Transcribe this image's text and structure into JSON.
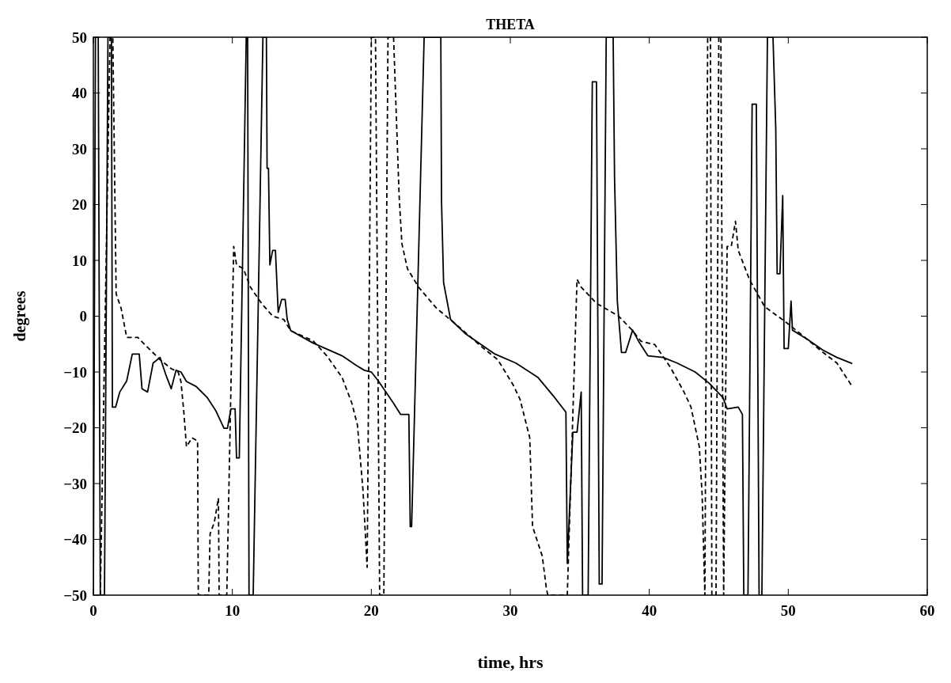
{
  "chart_data": {
    "type": "line",
    "title": "THETA",
    "xlabel": "time, hrs",
    "ylabel": "degrees",
    "xlim": [
      0,
      60
    ],
    "ylim": [
      -50,
      50
    ],
    "xticks": [
      0,
      10,
      20,
      30,
      40,
      50,
      60
    ],
    "yticks": [
      -50,
      -40,
      -30,
      -20,
      -10,
      0,
      10,
      20,
      30,
      40,
      50
    ],
    "grid": false,
    "series": [
      {
        "color": "#000000",
        "line_style": "solid",
        "x": [
          0,
          0.15,
          0.35,
          0.5,
          0.8,
          1.05,
          1.3,
          1.37,
          1.6,
          1.9,
          2.4,
          2.8,
          3.3,
          3.5,
          3.9,
          4.3,
          4.8,
          5.2,
          5.6,
          5.95,
          6.3,
          6.7,
          7.4,
          8.2,
          8.8,
          9.4,
          9.65,
          9.9,
          10.2,
          10.3,
          10.5,
          11.0,
          11.1,
          11.2,
          11.5,
          12.2,
          12.45,
          12.5,
          12.6,
          12.7,
          12.9,
          13.1,
          13.3,
          13.55,
          13.8,
          13.95,
          14.2,
          15.8,
          17.9,
          18.9,
          19.5,
          20.0,
          20.5,
          21.6,
          22.1,
          22.7,
          22.8,
          22.9,
          23.8,
          25.0,
          25.05,
          25.2,
          25.7,
          26.8,
          28.9,
          30.4,
          32.0,
          33.1,
          34.0,
          34.1,
          34.5,
          34.8,
          35.1,
          35.2,
          35.6,
          35.9,
          36.2,
          36.4,
          36.6,
          36.9,
          37.4,
          37.5,
          37.7,
          38.0,
          38.3,
          38.8,
          39.3,
          39.9,
          41.0,
          42.0,
          43.3,
          44.3,
          45.3,
          45.6,
          46.4,
          46.7,
          46.8,
          47.1,
          47.4,
          47.7,
          47.9,
          48.1,
          48.5,
          48.9,
          49.1,
          49.2,
          49.4,
          49.6,
          49.7,
          50.0,
          50.2,
          50.3,
          51.4,
          52.5,
          53.5,
          54.6
        ],
        "values": [
          -50,
          50,
          50,
          -50,
          -50,
          50,
          50,
          -16.3,
          -16.3,
          -13.6,
          -11.6,
          -6.8,
          -6.8,
          -13,
          -13.6,
          -8.4,
          -7.4,
          -10.4,
          -13,
          -9.7,
          -10,
          -11.7,
          -12.6,
          -14.6,
          -16.9,
          -20.1,
          -20.1,
          -16.6,
          -16.6,
          -25.4,
          -25.4,
          50,
          50,
          -50,
          -50,
          50,
          50,
          26.5,
          26.5,
          9.2,
          11.8,
          11.8,
          0.7,
          3,
          3,
          -0.6,
          -2.6,
          -4.8,
          -7.1,
          -8.8,
          -9.7,
          -10,
          -11.6,
          -15.6,
          -17.6,
          -17.6,
          -37.7,
          -37.7,
          50,
          50,
          20.6,
          6,
          -0.6,
          -3.2,
          -6.8,
          -8.4,
          -11,
          -14.3,
          -17.2,
          -44.3,
          -20.8,
          -20.8,
          -13.6,
          -50,
          -50,
          42,
          42,
          -48,
          -48,
          50,
          50,
          24.8,
          2.7,
          -6.5,
          -6.5,
          -2.5,
          -4.8,
          -7.1,
          -7.4,
          -8.4,
          -10,
          -12,
          -14.6,
          -16.6,
          -16.3,
          -17.6,
          -50,
          -50,
          38,
          38,
          -50,
          -50,
          50,
          50,
          33.6,
          7.6,
          7.6,
          21.6,
          -5.8,
          -5.8,
          2.7,
          -2.5,
          -4.2,
          -6.1,
          -7.4,
          -8.5
        ]
      },
      {
        "color": "#000000",
        "line_style": "dashed",
        "x": [
          0.5,
          1.2,
          1.4,
          1.64,
          2.0,
          2.4,
          2.8,
          3.2,
          3.7,
          4.8,
          5.6,
          6.1,
          6.3,
          6.5,
          6.7,
          7.1,
          7.5,
          7.55,
          8.3,
          8.4,
          8.7,
          9.0,
          9.05,
          9.6,
          10.1,
          10.3,
          10.8,
          11.3,
          12.1,
          12.9,
          13.7,
          14.2,
          15.8,
          16.8,
          17.9,
          18.6,
          19.0,
          19.4,
          19.7,
          20.0,
          20.3,
          20.6,
          20.9,
          21.2,
          21.6,
          22.0,
          22.2,
          22.6,
          23.4,
          24.7,
          26.3,
          27.8,
          29.1,
          30.2,
          30.7,
          31.4,
          31.6,
          32.3,
          32.6,
          32.7,
          34.1,
          34.8,
          35.1,
          36.2,
          37.8,
          38.8,
          39.4,
          40.4,
          41.5,
          42.5,
          43.0,
          43.6,
          43.8,
          44.0,
          44.2,
          44.4,
          44.5,
          44.8,
          45.0,
          45.15,
          45.35,
          45.6,
          45.9,
          46.2,
          46.4,
          47.2,
          48.3,
          49.9,
          50.9,
          52.5,
          53.5,
          54.6
        ],
        "values": [
          -50,
          50,
          50,
          4,
          1.4,
          -3.8,
          -3.8,
          -3.8,
          -5.1,
          -7.8,
          -9.4,
          -10,
          -11.7,
          -16.9,
          -23.4,
          -21.8,
          -22.4,
          -50,
          -50,
          -39,
          -37,
          -32.6,
          -50,
          -50,
          12.5,
          9.2,
          8.5,
          5.2,
          2.3,
          0,
          -0.6,
          -2.6,
          -4.4,
          -7.1,
          -11,
          -15.6,
          -19.5,
          -31.2,
          -45,
          50,
          50,
          -50,
          -50,
          50,
          50,
          21.6,
          13,
          8.5,
          5.2,
          1.4,
          -1.9,
          -5.2,
          -7.8,
          -12.3,
          -14.9,
          -21.8,
          -37.7,
          -43,
          -48.9,
          -50,
          -50,
          6.6,
          5.2,
          2.3,
          0,
          -2.6,
          -4.5,
          -5.1,
          -9.1,
          -13.6,
          -16.3,
          -23.4,
          -31.9,
          -50,
          50,
          50,
          -50,
          -50,
          50,
          50,
          -50,
          12.5,
          12.5,
          17,
          11.8,
          6.6,
          1.7,
          -1.2,
          -3.2,
          -6.5,
          -8.4,
          -12.6
        ]
      }
    ]
  }
}
